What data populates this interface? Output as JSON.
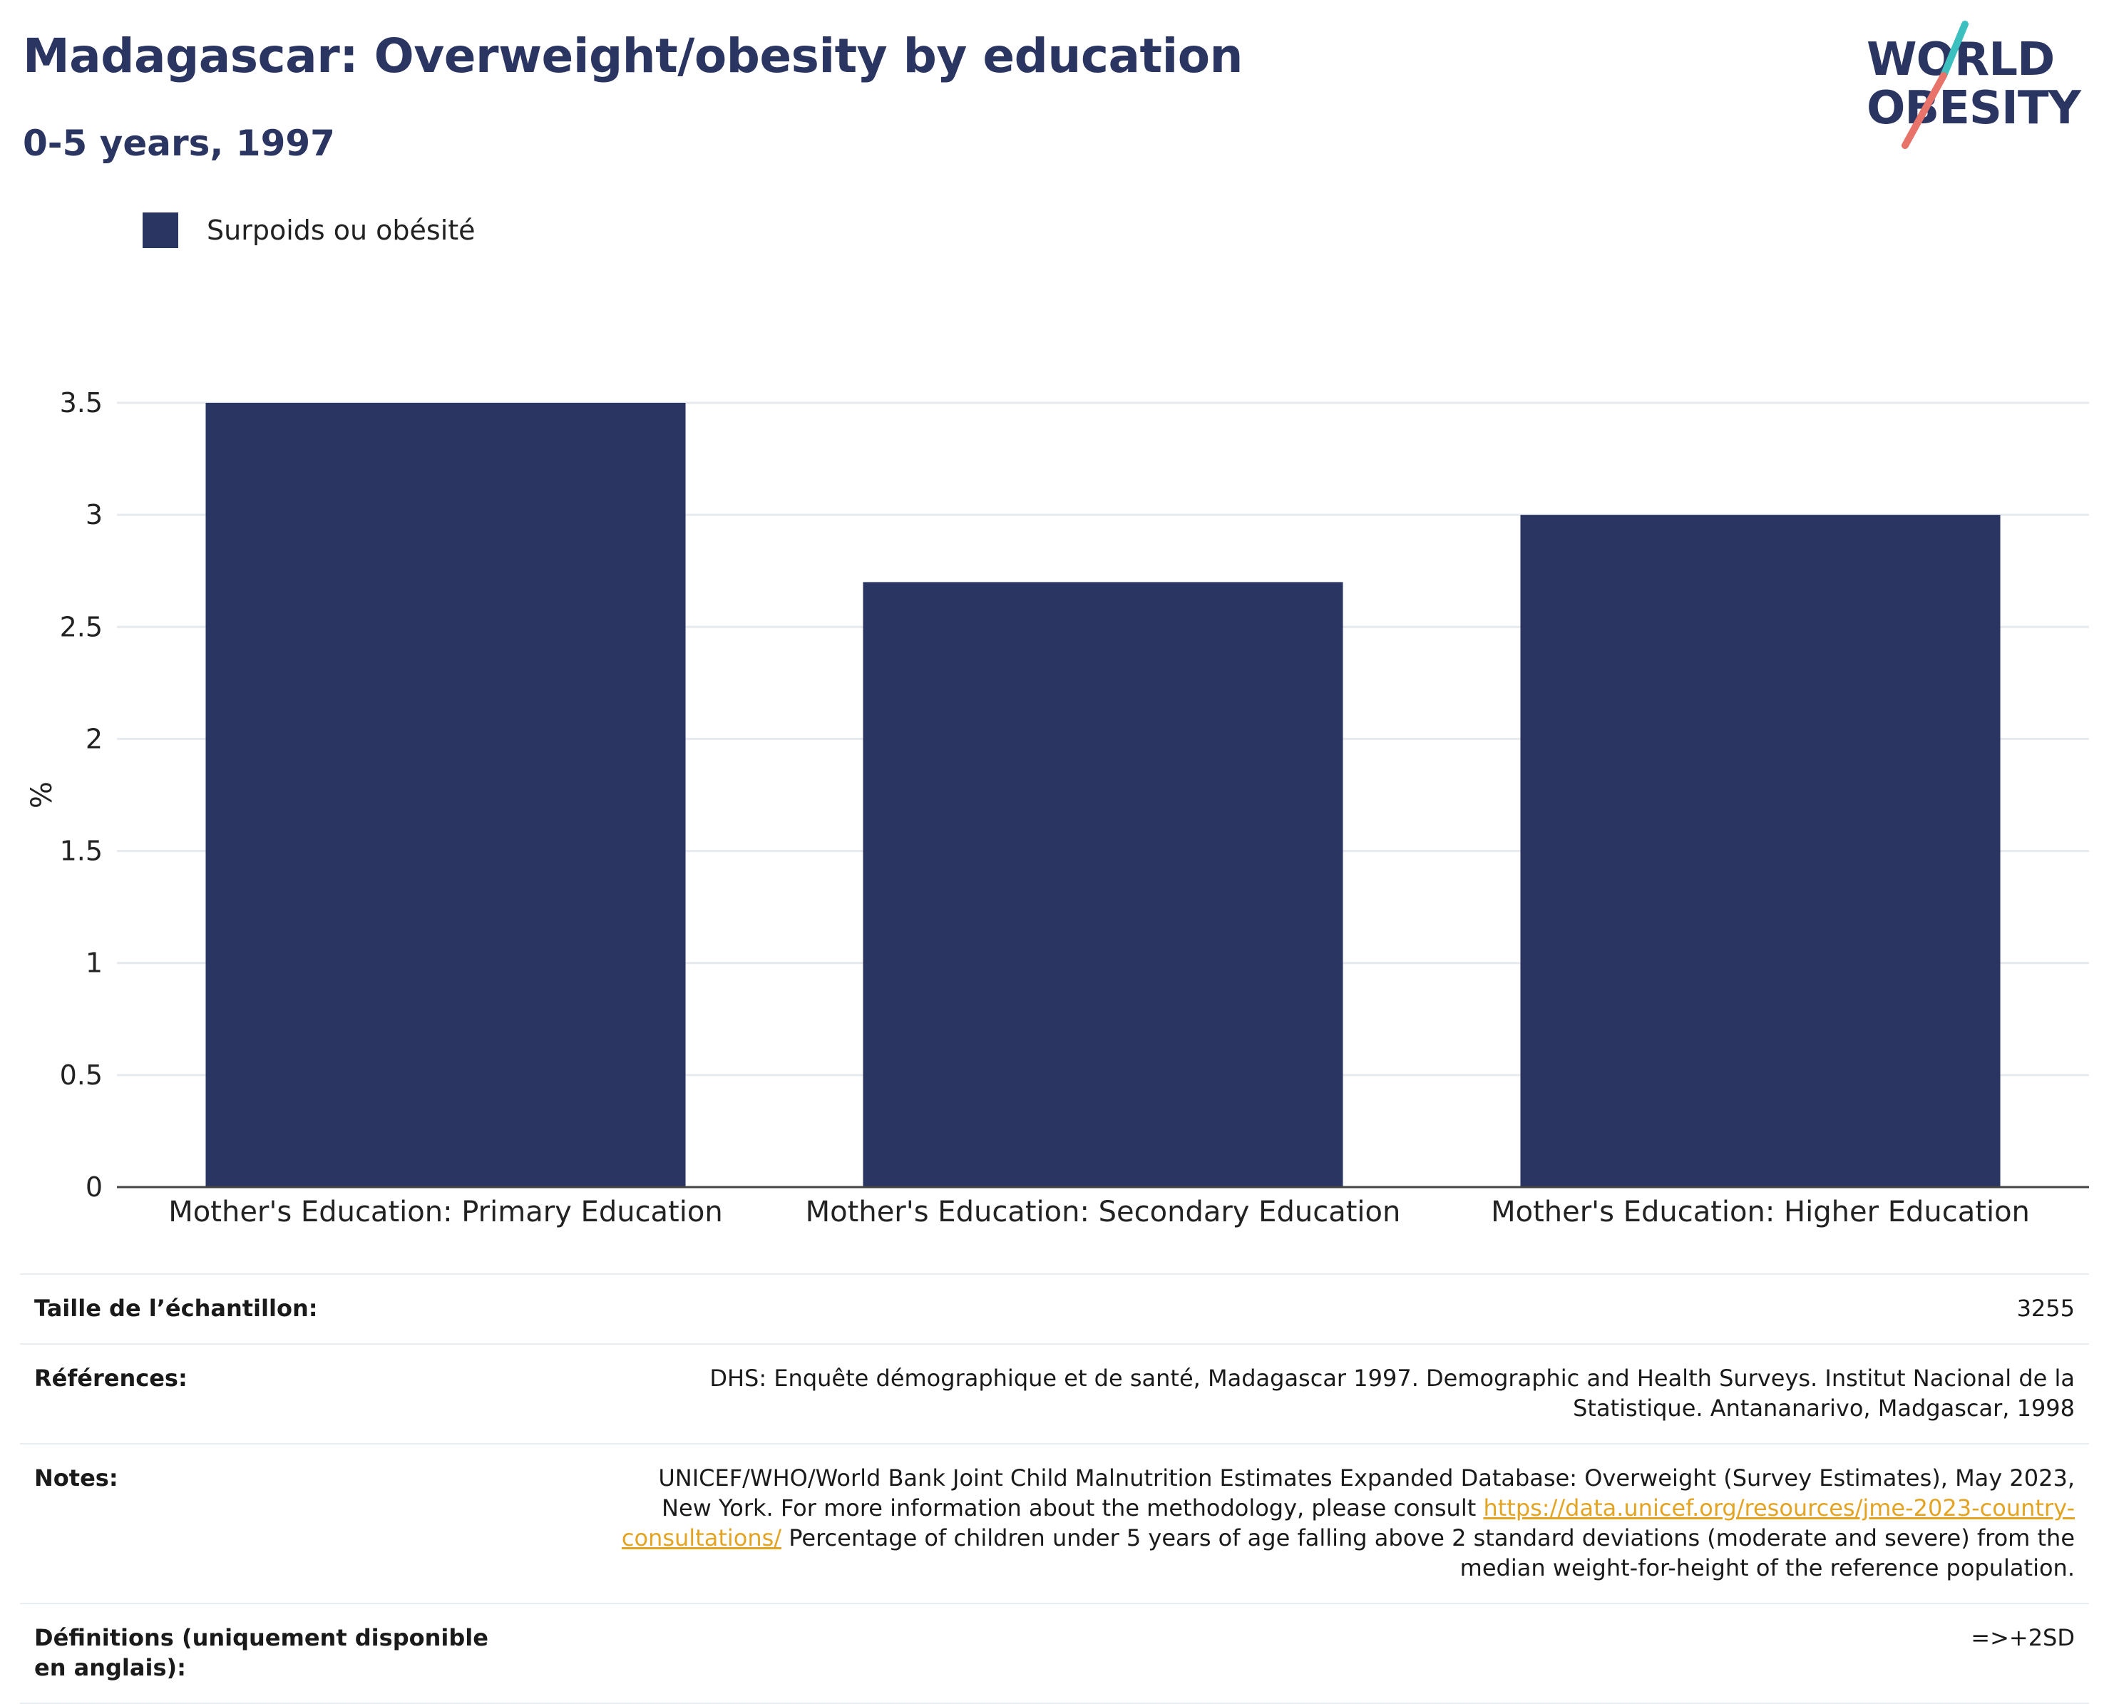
{
  "header": {
    "title": "Madagascar: Overweight/obesity by education",
    "subtitle": "0-5 years, 1997"
  },
  "logo": {
    "line1": "WORLD",
    "line2": "OBESITY",
    "colors": {
      "text": "#2b3561",
      "slash_top": "#3bbfbf",
      "slash_bottom": "#e8736a"
    }
  },
  "legend": {
    "label": "Surpoids ou obésité",
    "color": "#2b3561"
  },
  "chart_data": {
    "type": "bar",
    "categories": [
      "Mother's Education: Primary Education",
      "Mother's Education: Secondary Education",
      "Mother's Education: Higher Education"
    ],
    "series": [
      {
        "name": "Surpoids ou obésité",
        "values": [
          3.5,
          2.7,
          3.0
        ],
        "color": "#2b3561"
      }
    ],
    "ylabel": "%",
    "ylim": [
      0,
      3.5
    ],
    "yticks": [
      0,
      0.5,
      1,
      1.5,
      2,
      2.5,
      3,
      3.5
    ],
    "ytick_labels": [
      "0",
      "0.5",
      "1",
      "1.5",
      "2",
      "2.5",
      "3",
      "3.5"
    ],
    "grid": true,
    "legend_position": "top-left"
  },
  "info": {
    "sample_size_label": "Taille de l’échantillon:",
    "sample_size_value": "3255",
    "references_label": "Références:",
    "references_value": "DHS: Enquête démographique et de santé, Madagascar 1997. Demographic and Health Surveys. Institut Nacional de la Statistique. Antananarivo, Madgascar, 1998",
    "notes_label": "Notes:",
    "notes_text_1": "UNICEF/WHO/World Bank Joint Child Malnutrition Estimates Expanded Database: Overweight (Survey Estimates), May 2023, New York. For more information about the methodology, please consult ",
    "notes_link": "https://data.unicef.org/resources/jme-2023-country-consultations/",
    "notes_text_2": " Percentage of children under 5 years of age falling above 2 standard deviations (moderate and severe) from the median weight-for-height of the reference population.",
    "definitions_label": "Définitions (uniquement disponible en anglais):",
    "definitions_value": "=>+2SD"
  }
}
